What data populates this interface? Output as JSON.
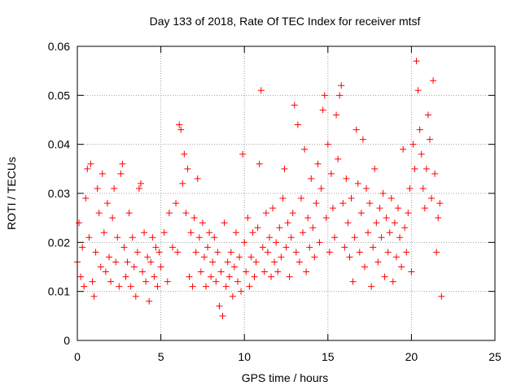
{
  "chart_data": {
    "type": "scatter",
    "title": "Day 133 of 2018, Rate Of TEC Index for receiver mtsf",
    "xlabel": "GPS time / hours",
    "ylabel": "ROTI / TECUs",
    "xlim": [
      0,
      25
    ],
    "ylim": [
      0,
      0.06
    ],
    "x_ticks": [
      0,
      5,
      10,
      15,
      20,
      25
    ],
    "x_tick_labels": [
      "0",
      "5",
      "10",
      "15",
      "20",
      "25"
    ],
    "y_ticks": [
      0,
      0.01,
      0.02,
      0.03,
      0.04,
      0.05,
      0.06
    ],
    "y_tick_labels": [
      "0",
      "0.01",
      "0.02",
      "0.03",
      "0.04",
      "0.05",
      "0.06"
    ],
    "grid": true,
    "marker": "+",
    "color": "#ff0000",
    "series": [
      {
        "name": "ROTI",
        "points": [
          [
            0.0,
            0.016
          ],
          [
            0.1,
            0.024
          ],
          [
            0.2,
            0.013
          ],
          [
            0.3,
            0.019
          ],
          [
            0.4,
            0.011
          ],
          [
            0.5,
            0.029
          ],
          [
            0.6,
            0.035
          ],
          [
            0.7,
            0.021
          ],
          [
            0.8,
            0.036
          ],
          [
            0.9,
            0.012
          ],
          [
            1.0,
            0.009
          ],
          [
            1.1,
            0.018
          ],
          [
            1.2,
            0.031
          ],
          [
            1.3,
            0.026
          ],
          [
            1.4,
            0.015
          ],
          [
            1.5,
            0.034
          ],
          [
            1.6,
            0.022
          ],
          [
            1.7,
            0.014
          ],
          [
            1.8,
            0.028
          ],
          [
            1.9,
            0.017
          ],
          [
            2.0,
            0.012
          ],
          [
            2.1,
            0.025
          ],
          [
            2.2,
            0.031
          ],
          [
            2.3,
            0.016
          ],
          [
            2.4,
            0.021
          ],
          [
            2.5,
            0.011
          ],
          [
            2.6,
            0.034
          ],
          [
            2.7,
            0.036
          ],
          [
            2.8,
            0.019
          ],
          [
            2.9,
            0.013
          ],
          [
            3.0,
            0.016
          ],
          [
            3.1,
            0.026
          ],
          [
            3.2,
            0.011
          ],
          [
            3.3,
            0.021
          ],
          [
            3.4,
            0.015
          ],
          [
            3.5,
            0.009
          ],
          [
            3.6,
            0.018
          ],
          [
            3.7,
            0.031
          ],
          [
            3.8,
            0.032
          ],
          [
            3.9,
            0.014
          ],
          [
            4.0,
            0.022
          ],
          [
            4.1,
            0.012
          ],
          [
            4.2,
            0.017
          ],
          [
            4.3,
            0.008
          ],
          [
            4.4,
            0.016
          ],
          [
            4.5,
            0.021
          ],
          [
            4.6,
            0.013
          ],
          [
            4.7,
            0.019
          ],
          [
            4.8,
            0.011
          ],
          [
            4.9,
            0.018
          ],
          [
            5.0,
            0.015
          ],
          [
            5.2,
            0.022
          ],
          [
            5.4,
            0.012
          ],
          [
            5.5,
            0.026
          ],
          [
            5.7,
            0.019
          ],
          [
            5.9,
            0.028
          ],
          [
            6.0,
            0.018
          ],
          [
            6.1,
            0.044
          ],
          [
            6.2,
            0.043
          ],
          [
            6.3,
            0.032
          ],
          [
            6.4,
            0.038
          ],
          [
            6.5,
            0.026
          ],
          [
            6.6,
            0.035
          ],
          [
            6.7,
            0.013
          ],
          [
            6.8,
            0.022
          ],
          [
            6.9,
            0.011
          ],
          [
            7.0,
            0.025
          ],
          [
            7.1,
            0.018
          ],
          [
            7.2,
            0.033
          ],
          [
            7.3,
            0.021
          ],
          [
            7.4,
            0.014
          ],
          [
            7.5,
            0.024
          ],
          [
            7.6,
            0.017
          ],
          [
            7.7,
            0.011
          ],
          [
            7.8,
            0.019
          ],
          [
            7.9,
            0.022
          ],
          [
            8.0,
            0.013
          ],
          [
            8.1,
            0.016
          ],
          [
            8.2,
            0.021
          ],
          [
            8.3,
            0.012
          ],
          [
            8.4,
            0.018
          ],
          [
            8.5,
            0.007
          ],
          [
            8.6,
            0.014
          ],
          [
            8.7,
            0.005
          ],
          [
            8.8,
            0.024
          ],
          [
            8.9,
            0.011
          ],
          [
            9.0,
            0.016
          ],
          [
            9.1,
            0.013
          ],
          [
            9.2,
            0.018
          ],
          [
            9.3,
            0.009
          ],
          [
            9.4,
            0.015
          ],
          [
            9.5,
            0.022
          ],
          [
            9.6,
            0.012
          ],
          [
            9.7,
            0.017
          ],
          [
            9.8,
            0.01
          ],
          [
            9.9,
            0.038
          ],
          [
            10.0,
            0.02
          ],
          [
            10.1,
            0.014
          ],
          [
            10.2,
            0.025
          ],
          [
            10.3,
            0.011
          ],
          [
            10.4,
            0.017
          ],
          [
            10.5,
            0.022
          ],
          [
            10.6,
            0.013
          ],
          [
            10.7,
            0.016
          ],
          [
            10.8,
            0.023
          ],
          [
            10.9,
            0.036
          ],
          [
            11.0,
            0.051
          ],
          [
            11.1,
            0.019
          ],
          [
            11.2,
            0.014
          ],
          [
            11.3,
            0.026
          ],
          [
            11.4,
            0.018
          ],
          [
            11.5,
            0.021
          ],
          [
            11.6,
            0.013
          ],
          [
            11.7,
            0.027
          ],
          [
            11.8,
            0.016
          ],
          [
            11.9,
            0.02
          ],
          [
            12.0,
            0.014
          ],
          [
            12.1,
            0.023
          ],
          [
            12.2,
            0.017
          ],
          [
            12.3,
            0.029
          ],
          [
            12.4,
            0.035
          ],
          [
            12.5,
            0.019
          ],
          [
            12.6,
            0.024
          ],
          [
            12.7,
            0.013
          ],
          [
            12.8,
            0.021
          ],
          [
            12.9,
            0.026
          ],
          [
            13.0,
            0.048
          ],
          [
            13.1,
            0.018
          ],
          [
            13.2,
            0.044
          ],
          [
            13.3,
            0.016
          ],
          [
            13.4,
            0.029
          ],
          [
            13.5,
            0.022
          ],
          [
            13.6,
            0.039
          ],
          [
            13.7,
            0.014
          ],
          [
            13.8,
            0.025
          ],
          [
            13.9,
            0.019
          ],
          [
            14.0,
            0.033
          ],
          [
            14.1,
            0.023
          ],
          [
            14.2,
            0.017
          ],
          [
            14.3,
            0.028
          ],
          [
            14.4,
            0.036
          ],
          [
            14.5,
            0.02
          ],
          [
            14.6,
            0.031
          ],
          [
            14.7,
            0.047
          ],
          [
            14.8,
            0.05
          ],
          [
            14.9,
            0.025
          ],
          [
            15.0,
            0.04
          ],
          [
            15.1,
            0.018
          ],
          [
            15.2,
            0.034
          ],
          [
            15.3,
            0.027
          ],
          [
            15.4,
            0.021
          ],
          [
            15.5,
            0.046
          ],
          [
            15.6,
            0.037
          ],
          [
            15.7,
            0.05
          ],
          [
            15.8,
            0.052
          ],
          [
            15.9,
            0.028
          ],
          [
            16.0,
            0.019
          ],
          [
            16.1,
            0.033
          ],
          [
            16.2,
            0.024
          ],
          [
            16.3,
            0.017
          ],
          [
            16.4,
            0.029
          ],
          [
            16.5,
            0.012
          ],
          [
            16.6,
            0.021
          ],
          [
            16.7,
            0.043
          ],
          [
            16.8,
            0.032
          ],
          [
            16.9,
            0.018
          ],
          [
            17.0,
            0.026
          ],
          [
            17.1,
            0.041
          ],
          [
            17.2,
            0.015
          ],
          [
            17.3,
            0.031
          ],
          [
            17.4,
            0.022
          ],
          [
            17.5,
            0.028
          ],
          [
            17.6,
            0.011
          ],
          [
            17.7,
            0.019
          ],
          [
            17.8,
            0.035
          ],
          [
            17.9,
            0.024
          ],
          [
            18.0,
            0.016
          ],
          [
            18.1,
            0.027
          ],
          [
            18.2,
            0.021
          ],
          [
            18.3,
            0.03
          ],
          [
            18.4,
            0.013
          ],
          [
            18.5,
            0.025
          ],
          [
            18.6,
            0.018
          ],
          [
            18.7,
            0.022
          ],
          [
            18.8,
            0.029
          ],
          [
            18.9,
            0.012
          ],
          [
            19.0,
            0.024
          ],
          [
            19.1,
            0.017
          ],
          [
            19.2,
            0.027
          ],
          [
            19.3,
            0.021
          ],
          [
            19.4,
            0.015
          ],
          [
            19.5,
            0.039
          ],
          [
            19.6,
            0.023
          ],
          [
            19.7,
            0.018
          ],
          [
            19.8,
            0.026
          ],
          [
            19.9,
            0.031
          ],
          [
            20.0,
            0.014
          ],
          [
            20.1,
            0.04
          ],
          [
            20.2,
            0.035
          ],
          [
            20.3,
            0.057
          ],
          [
            20.4,
            0.051
          ],
          [
            20.5,
            0.043
          ],
          [
            20.6,
            0.038
          ],
          [
            20.7,
            0.031
          ],
          [
            20.8,
            0.027
          ],
          [
            20.9,
            0.035
          ],
          [
            21.0,
            0.046
          ],
          [
            21.1,
            0.041
          ],
          [
            21.2,
            0.029
          ],
          [
            21.3,
            0.053
          ],
          [
            21.4,
            0.034
          ],
          [
            21.5,
            0.018
          ],
          [
            21.6,
            0.025
          ],
          [
            21.7,
            0.028
          ],
          [
            21.8,
            0.009
          ]
        ]
      }
    ]
  }
}
